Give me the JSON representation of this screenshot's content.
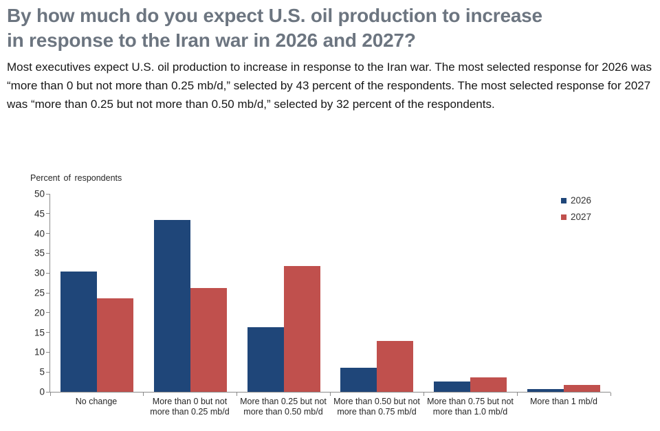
{
  "page": {
    "title": "By how much do you expect U.S. oil production to increase in response to the Iran war in 2026 and 2027?",
    "description": "Most executives expect U.S. oil production to increase in response to the Iran war. The most selected response for 2026 was “more than 0 but not more than 0.25 mb/d,” selected by 43 percent of the respondents. The most selected response for 2027 was “more than 0.25 but not more than 0.50 mb/d,” selected by 32 percent of the respondents."
  },
  "chart_data": {
    "type": "bar",
    "title": "",
    "ylabel": "Percent of respondents",
    "xlabel": "",
    "categories": [
      "No change",
      "More than 0 but not more than 0.25 mb/d",
      "More than 0.25 but not more than 0.50 mb/d",
      "More than 0.50 but not more than 0.75 mb/d",
      "More than 0.75 but not more than 1.0 mb/d",
      "More than 1 mb/d"
    ],
    "series": [
      {
        "name": "2026",
        "color": "#1F4679",
        "values": [
          30.4,
          43.4,
          16.4,
          6.1,
          2.6,
          0.7
        ]
      },
      {
        "name": "2027",
        "color": "#C0504D",
        "values": [
          23.7,
          26.3,
          31.7,
          12.8,
          3.7,
          1.8
        ]
      }
    ],
    "ylim": [
      0,
      50
    ],
    "ytick_step": 5,
    "grid": false,
    "legend_position": "top-right",
    "axis_color": "#8a8a8a"
  }
}
